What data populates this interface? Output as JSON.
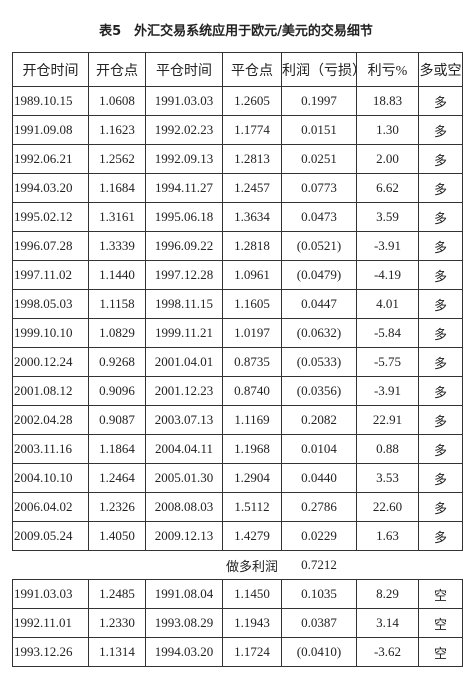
{
  "title": "表5　外汇交易系统应用于欧元/美元的交易细节",
  "table": {
    "headers": [
      "开仓时间",
      "开仓点",
      "平仓时间",
      "平仓点",
      "利润（亏损）",
      "利亏%",
      "多或空"
    ],
    "rows": [
      [
        "1989.10.15",
        "1.0608",
        "1991.03.03",
        "1.2605",
        "0.1997",
        "18.83",
        "多"
      ],
      [
        "1991.09.08",
        "1.1623",
        "1992.02.23",
        "1.1774",
        "0.0151",
        "1.30",
        "多"
      ],
      [
        "1992.06.21",
        "1.2562",
        "1992.09.13",
        "1.2813",
        "0.0251",
        "2.00",
        "多"
      ],
      [
        "1994.03.20",
        "1.1684",
        "1994.11.27",
        "1.2457",
        "0.0773",
        "6.62",
        "多"
      ],
      [
        "1995.02.12",
        "1.3161",
        "1995.06.18",
        "1.3634",
        "0.0473",
        "3.59",
        "多"
      ],
      [
        "1996.07.28",
        "1.3339",
        "1996.09.22",
        "1.2818",
        "(0.0521)",
        "-3.91",
        "多"
      ],
      [
        "1997.11.02",
        "1.1440",
        "1997.12.28",
        "1.0961",
        "(0.0479)",
        "-4.19",
        "多"
      ],
      [
        "1998.05.03",
        "1.1158",
        "1998.11.15",
        "1.1605",
        "0.0447",
        "4.01",
        "多"
      ],
      [
        "1999.10.10",
        "1.0829",
        "1999.11.21",
        "1.0197",
        "(0.0632)",
        "-5.84",
        "多"
      ],
      [
        "2000.12.24",
        "0.9268",
        "2001.04.01",
        "0.8735",
        "(0.0533)",
        "-5.75",
        "多"
      ],
      [
        "2001.08.12",
        "0.9096",
        "2001.12.23",
        "0.8740",
        "(0.0356)",
        "-3.91",
        "多"
      ],
      [
        "2002.04.28",
        "0.9087",
        "2003.07.13",
        "1.1169",
        "0.2082",
        "22.91",
        "多"
      ],
      [
        "2003.11.16",
        "1.1864",
        "2004.04.11",
        "1.1968",
        "0.0104",
        "0.88",
        "多"
      ],
      [
        "2004.10.10",
        "1.2464",
        "2005.01.30",
        "1.2904",
        "0.0440",
        "3.53",
        "多"
      ],
      [
        "2006.04.02",
        "1.2326",
        "2008.08.03",
        "1.5112",
        "0.2786",
        "22.60",
        "多"
      ],
      [
        "2009.05.24",
        "1.4050",
        "2009.12.13",
        "1.4279",
        "0.0229",
        "1.63",
        "多"
      ]
    ],
    "summary": {
      "label": "做多利润",
      "value": "0.7212"
    },
    "rows_after": [
      [
        "1991.03.03",
        "1.2485",
        "1991.08.04",
        "1.1450",
        "0.1035",
        "8.29",
        "空"
      ],
      [
        "1992.11.01",
        "1.2330",
        "1993.08.29",
        "1.1943",
        "0.0387",
        "3.14",
        "空"
      ],
      [
        "1993.12.26",
        "1.1314",
        "1994.03.20",
        "1.1724",
        "(0.0410)",
        "-3.62",
        "空"
      ]
    ]
  }
}
